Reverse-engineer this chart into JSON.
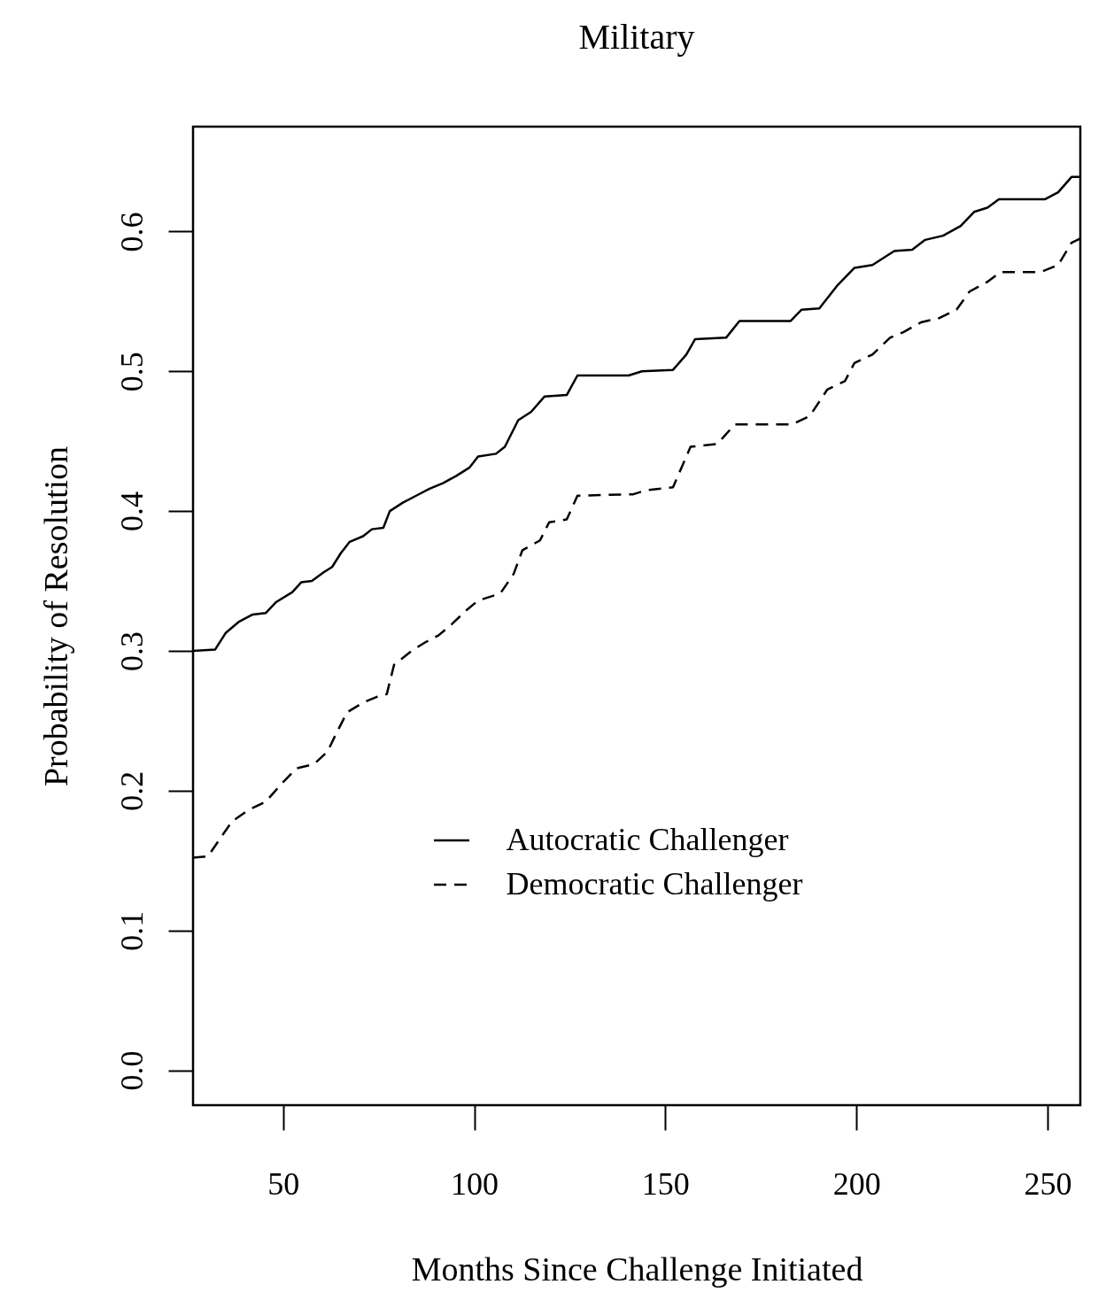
{
  "chart_data": {
    "type": "line",
    "title": "Military",
    "xlabel": "Months Since Challenge Initiated",
    "ylabel": "Probability of Resolution",
    "xlim": [
      26.4,
      258.6
    ],
    "ylim": [
      -0.025,
      0.675
    ],
    "xticks": [
      50,
      100,
      150,
      200,
      250
    ],
    "yticks": [
      {
        "value": 0,
        "label": "0.0"
      },
      0.1,
      0.2,
      0.3,
      0.4,
      0.5,
      0.6
    ],
    "legend": "center",
    "grid": false,
    "marker": "none",
    "series": [
      {
        "name": "Autocratic Challenger",
        "color": "#000000",
        "line_style": "solid",
        "x": [
          26.4,
          32.2,
          35,
          38.5,
          42,
          45.4,
          48.2,
          52.4,
          54.7,
          57.5,
          60.5,
          62.8,
          65.1,
          67.4,
          70.9,
          73.2,
          76.2,
          77.9,
          81.3,
          84.8,
          88.3,
          91.8,
          95.2,
          98.7,
          101,
          105.7,
          108,
          111.5,
          114.9,
          118.4,
          124.2,
          127,
          140.4,
          143.9,
          152,
          155.5,
          157.8,
          165.9,
          169.4,
          182.8,
          185.6,
          190.3,
          194.9,
          199.5,
          204.2,
          209.9,
          214.6,
          218,
          222.7,
          227.3,
          230.8,
          234.3,
          237.3,
          249.3,
          252.8,
          256.3,
          258.6
        ],
        "values": [
          0.3,
          0.301,
          0.313,
          0.321,
          0.326,
          0.327,
          0.335,
          0.342,
          0.349,
          0.35,
          0.356,
          0.36,
          0.37,
          0.378,
          0.382,
          0.387,
          0.388,
          0.4,
          0.406,
          0.411,
          0.416,
          0.42,
          0.425,
          0.431,
          0.439,
          0.441,
          0.446,
          0.465,
          0.471,
          0.482,
          0.483,
          0.497,
          0.497,
          0.5,
          0.501,
          0.512,
          0.523,
          0.524,
          0.536,
          0.536,
          0.544,
          0.545,
          0.561,
          0.574,
          0.576,
          0.586,
          0.587,
          0.594,
          0.597,
          0.604,
          0.614,
          0.617,
          0.623,
          0.623,
          0.628,
          0.639,
          0.639
        ]
      },
      {
        "name": "Democratic Challenger",
        "color": "#000000",
        "line_style": "dashed",
        "x": [
          26.4,
          30.3,
          33.8,
          36.6,
          40.8,
          45.4,
          49.6,
          53.5,
          58.1,
          61.6,
          63.9,
          66.7,
          70.9,
          74.4,
          77.1,
          79,
          83.6,
          87.1,
          90.6,
          94.1,
          97.5,
          101,
          106.8,
          110.3,
          112.6,
          117.2,
          119.6,
          124.2,
          127,
          141.6,
          145.1,
          152,
          156.6,
          163.6,
          168.2,
          183.1,
          187.8,
          192.4,
          197,
          199.5,
          204.2,
          208.8,
          212.3,
          216.9,
          221.6,
          226.2,
          229.6,
          234.3,
          237.7,
          248.2,
          252.8,
          256.3,
          258.6
        ],
        "values": [
          0.152,
          0.153,
          0.167,
          0.178,
          0.186,
          0.192,
          0.205,
          0.216,
          0.219,
          0.228,
          0.241,
          0.256,
          0.263,
          0.267,
          0.269,
          0.29,
          0.3,
          0.306,
          0.311,
          0.319,
          0.328,
          0.336,
          0.341,
          0.355,
          0.372,
          0.379,
          0.392,
          0.394,
          0.411,
          0.412,
          0.415,
          0.417,
          0.446,
          0.448,
          0.462,
          0.462,
          0.468,
          0.487,
          0.493,
          0.506,
          0.512,
          0.524,
          0.528,
          0.535,
          0.538,
          0.544,
          0.557,
          0.564,
          0.571,
          0.571,
          0.576,
          0.592,
          0.595
        ]
      }
    ]
  }
}
